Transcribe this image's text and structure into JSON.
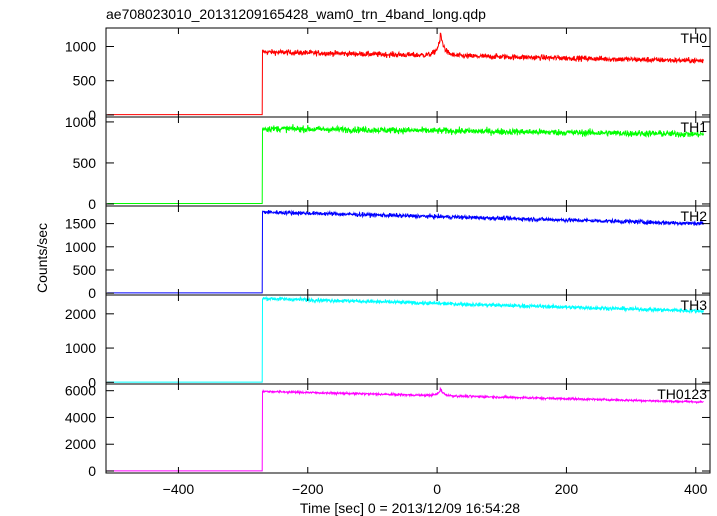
{
  "chart_data": {
    "type": "line",
    "title": "ae708023010_20131209165428_wam0_trn_4band_long.qdp",
    "xlabel": "Time [sec] 0 = 2013/12/09 16:54:28",
    "ylabel": "Counts/sec",
    "xlim": [
      -512,
      422
    ],
    "x_ticks": [
      -400,
      -200,
      0,
      200,
      400
    ],
    "x_tick_labels": [
      "−400",
      "−200",
      "0",
      "200",
      "400"
    ],
    "trigger_time": -270,
    "grid": false,
    "panels": [
      {
        "name": "TH0",
        "color": "#ff0000",
        "ylim": [
          -30,
          1270
        ],
        "y_ticks": [
          0,
          500,
          1000
        ],
        "y_tick_labels": [
          "0",
          "500",
          "1000"
        ],
        "baseline": 5,
        "level_start": 920,
        "level_end": 790,
        "noise": 40,
        "spike": {
          "x": 5,
          "peak": 1200,
          "width": 12
        }
      },
      {
        "name": "TH1",
        "color": "#00ff00",
        "ylim": [
          -25,
          1060
        ],
        "y_ticks": [
          0,
          500,
          1000
        ],
        "y_tick_labels": [
          "0",
          "500",
          "1000"
        ],
        "baseline": 5,
        "level_start": 920,
        "level_end": 850,
        "noise": 40,
        "spike": null
      },
      {
        "name": "TH2",
        "color": "#0000ff",
        "ylim": [
          -40,
          1880
        ],
        "y_ticks": [
          0,
          500,
          1000,
          1500
        ],
        "y_tick_labels": [
          "0",
          "500",
          "1000",
          "1500"
        ],
        "baseline": 5,
        "level_start": 1750,
        "level_end": 1500,
        "noise": 45,
        "spike": null
      },
      {
        "name": "TH3",
        "color": "#00ffff",
        "ylim": [
          -50,
          2550
        ],
        "y_ticks": [
          0,
          1000,
          2000
        ],
        "y_tick_labels": [
          "0",
          "1000",
          "2000"
        ],
        "baseline": 5,
        "level_start": 2450,
        "level_end": 2080,
        "noise": 55,
        "spike": null
      },
      {
        "name": "TH0123",
        "color": "#ff00ff",
        "ylim": [
          -150,
          6500
        ],
        "y_ticks": [
          0,
          2000,
          4000,
          6000
        ],
        "y_tick_labels": [
          "0",
          "2000",
          "4000",
          "6000"
        ],
        "baseline": 10,
        "level_start": 5950,
        "level_end": 5150,
        "noise": 80,
        "spike": {
          "x": 5,
          "peak": 6150,
          "width": 10
        }
      }
    ]
  }
}
